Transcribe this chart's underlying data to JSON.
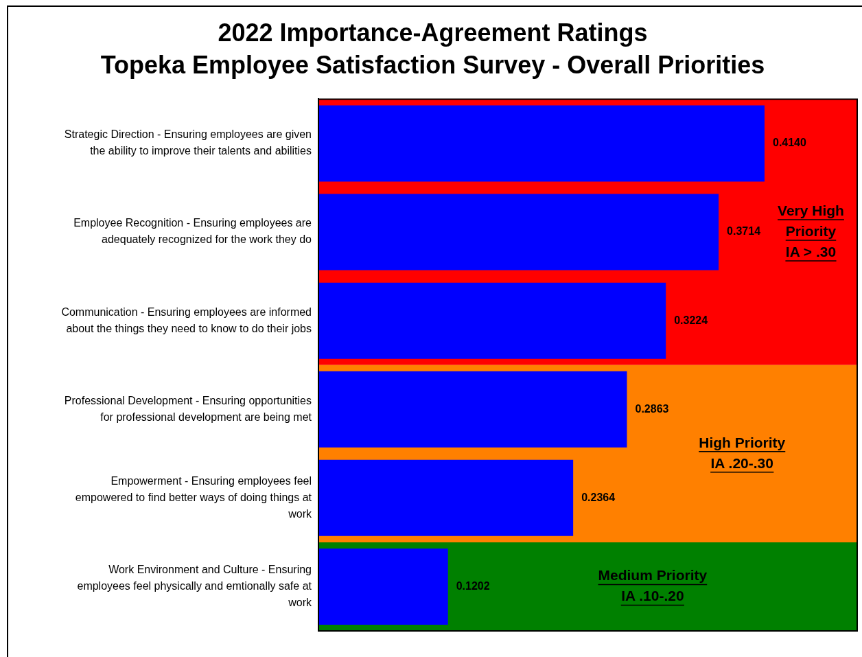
{
  "chart_data": {
    "type": "bar",
    "orientation": "horizontal",
    "title": "2022 Importance-Agreement Ratings",
    "subtitle": "Topeka Employee Satisfaction Survey - Overall Priorities",
    "categories": [
      "Strategic Direction - Ensuring employees are given the ability to improve their talents and abilities",
      "Employee Recognition - Ensuring employees are adequately recognized for the work they do",
      "Communication - Ensuring employees are informed about the things they need to know to do their jobs",
      "Professional Development - Ensuring opportunities for professional development are being met",
      "Empowerment - Ensuring employees feel empowered to find better ways of doing things at work",
      "Work Environment and Culture - Ensuring employees feel physically and emtionally safe at work"
    ],
    "values": [
      0.414,
      0.3714,
      0.3224,
      0.2863,
      0.2364,
      0.1202
    ],
    "value_labels": [
      "0.4140",
      "0.3714",
      "0.3224",
      "0.2863",
      "0.2364",
      "0.1202"
    ],
    "color": "#0000ff",
    "xlim": [
      0,
      0.5
    ],
    "tick_labels": "y",
    "legend": false,
    "bands": [
      {
        "axis": "y",
        "from": "Strategic Direction - Ensuring employees are given the ability to improve their talents and abilities",
        "to": "Communication - Ensuring employees are informed about the things they need to know to do their jobs",
        "label": "Very High\nPriority\nIA > .30",
        "color": "#ff0000"
      },
      {
        "axis": "y",
        "from": "Professional Development - Ensuring opportunities for professional development are being met",
        "to": "Empowerment - Ensuring employees feel empowered to find better ways of doing things at work",
        "label": "High Priority\nIA .20-.30",
        "color": "#ff8000"
      },
      {
        "axis": "y",
        "from": "Work Environment and Culture - Ensuring employees feel physically and emtionally safe at work",
        "to": "Work Environment and Culture - Ensuring employees feel physically and emtionally safe at work",
        "label": "Medium Priority\nIA .10-.20",
        "color": "#008000"
      }
    ]
  }
}
